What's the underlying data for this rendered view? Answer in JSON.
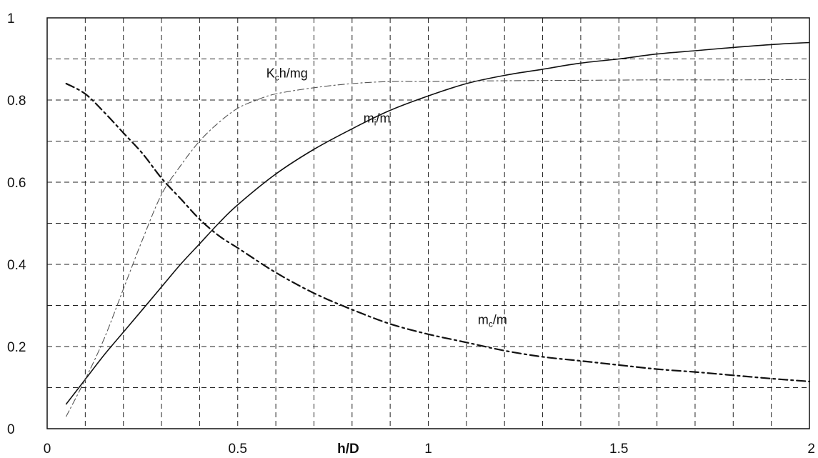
{
  "chart_data": {
    "type": "line",
    "title": "",
    "xlabel": "h/D",
    "ylabel": "",
    "xlim": [
      0,
      2
    ],
    "ylim": [
      0,
      1
    ],
    "grid": true,
    "grid_style": "dashed",
    "xticks": [
      0,
      0.5,
      1,
      1.5,
      2
    ],
    "yticks": [
      0,
      0.2,
      0.4,
      0.6,
      0.8,
      1
    ],
    "xtick_labels": [
      "0",
      "0.5",
      "1",
      "1.5",
      "2"
    ],
    "ytick_labels": [
      "0",
      "0.2",
      "0.4",
      "0.6",
      "0.8",
      "1"
    ],
    "x_grid_step": 0.1,
    "y_grid_step": 0.1,
    "series": [
      {
        "label_main": "m",
        "label_sub": "i",
        "label_tail": "/m",
        "style": "solid",
        "color": "#111111",
        "x": [
          0.05,
          0.1,
          0.15,
          0.2,
          0.25,
          0.3,
          0.35,
          0.4,
          0.45,
          0.5,
          0.6,
          0.7,
          0.8,
          0.9,
          1.0,
          1.1,
          1.2,
          1.3,
          1.4,
          1.5,
          1.6,
          1.7,
          1.8,
          1.9,
          2.0
        ],
        "y": [
          0.06,
          0.12,
          0.18,
          0.235,
          0.29,
          0.345,
          0.4,
          0.45,
          0.5,
          0.545,
          0.62,
          0.68,
          0.73,
          0.775,
          0.81,
          0.84,
          0.86,
          0.875,
          0.89,
          0.9,
          0.912,
          0.92,
          0.928,
          0.935,
          0.94
        ]
      },
      {
        "label_main": "m",
        "label_sub": "c",
        "label_tail": "/m",
        "style": "dashdot-heavy",
        "color": "#111111",
        "x": [
          0.05,
          0.1,
          0.15,
          0.2,
          0.25,
          0.3,
          0.35,
          0.4,
          0.45,
          0.5,
          0.6,
          0.7,
          0.8,
          0.9,
          1.0,
          1.1,
          1.2,
          1.3,
          1.4,
          1.5,
          1.6,
          1.7,
          1.8,
          1.9,
          2.0
        ],
        "y": [
          0.84,
          0.815,
          0.77,
          0.72,
          0.67,
          0.61,
          0.56,
          0.51,
          0.47,
          0.44,
          0.38,
          0.33,
          0.29,
          0.255,
          0.23,
          0.21,
          0.19,
          0.175,
          0.165,
          0.155,
          0.145,
          0.138,
          0.13,
          0.122,
          0.115
        ]
      },
      {
        "label_main": "K",
        "label_sub": "c",
        "label_tail": "h/mg",
        "style": "dashdot-light",
        "color": "#555555",
        "x": [
          0.05,
          0.1,
          0.15,
          0.2,
          0.25,
          0.3,
          0.35,
          0.4,
          0.45,
          0.5,
          0.55,
          0.6,
          0.7,
          0.8,
          0.9,
          1.0,
          1.2,
          1.4,
          1.6,
          1.8,
          2.0
        ],
        "y": [
          0.03,
          0.12,
          0.22,
          0.34,
          0.46,
          0.57,
          0.64,
          0.7,
          0.745,
          0.78,
          0.8,
          0.815,
          0.83,
          0.84,
          0.845,
          0.845,
          0.847,
          0.848,
          0.849,
          0.849,
          0.85
        ]
      }
    ],
    "annotations": [
      {
        "series_index": 2,
        "at": [
          0.575,
          0.855
        ]
      },
      {
        "series_index": 0,
        "at": [
          0.83,
          0.745
        ]
      },
      {
        "series_index": 1,
        "at": [
          1.13,
          0.255
        ]
      }
    ]
  }
}
